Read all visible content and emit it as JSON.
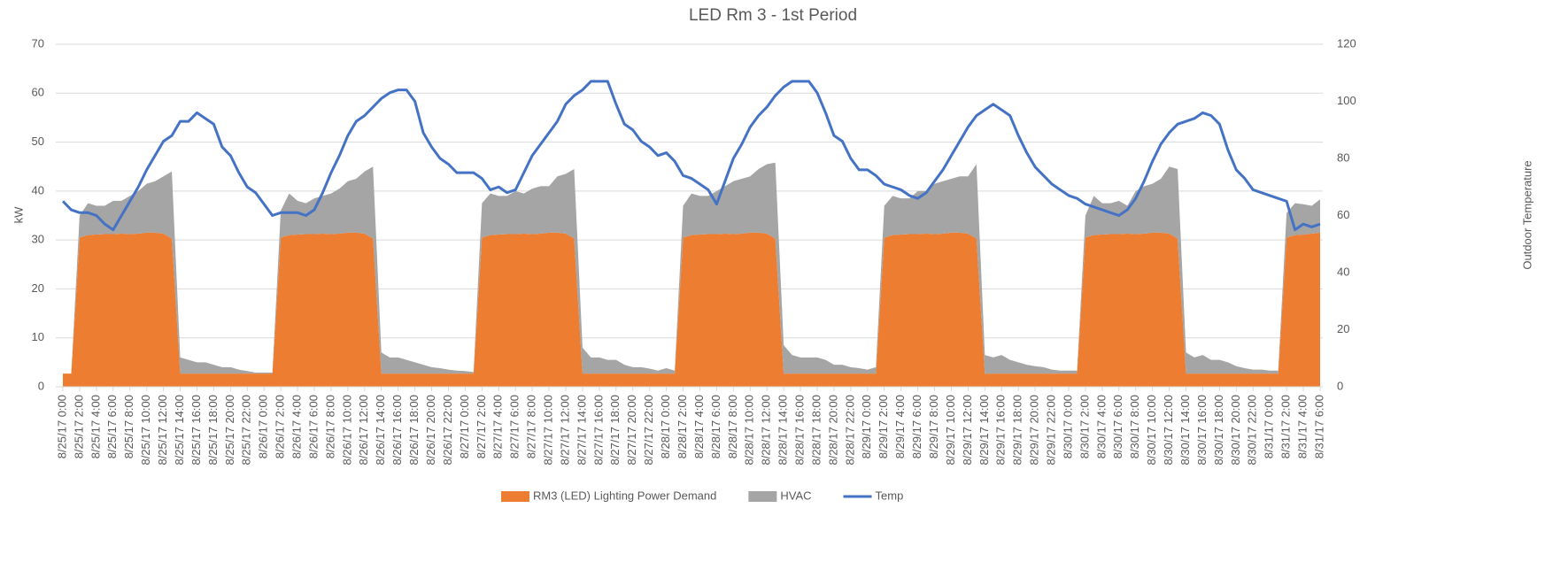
{
  "chart_data": {
    "type": "area",
    "stacked": true,
    "title": "LED Rm 3 - 1st Period",
    "y_label": "kW",
    "y2_label": "Outdoor Temperature",
    "categories": [
      "8/25/17 0:00",
      null,
      "8/25/17 2:00",
      null,
      "8/25/17 4:00",
      null,
      "8/25/17 6:00",
      null,
      "8/25/17 8:00",
      null,
      "8/25/17 10:00",
      null,
      "8/25/17 12:00",
      null,
      "8/25/17 14:00",
      null,
      "8/25/17 16:00",
      null,
      "8/25/17 18:00",
      null,
      "8/25/17 20:00",
      null,
      "8/25/17 22:00",
      null,
      "8/26/17 0:00",
      null,
      "8/26/17 2:00",
      null,
      "8/26/17 4:00",
      null,
      "8/26/17 6:00",
      null,
      "8/26/17 8:00",
      null,
      "8/26/17 10:00",
      null,
      "8/26/17 12:00",
      null,
      "8/26/17 14:00",
      null,
      "8/26/17 16:00",
      null,
      "8/26/17 18:00",
      null,
      "8/26/17 20:00",
      null,
      "8/26/17 22:00",
      null,
      "8/27/17 0:00",
      null,
      "8/27/17 2:00",
      null,
      "8/27/17 4:00",
      null,
      "8/27/17 6:00",
      null,
      "8/27/17 8:00",
      null,
      "8/27/17 10:00",
      null,
      "8/27/17 12:00",
      null,
      "8/27/17 14:00",
      null,
      "8/27/17 16:00",
      null,
      "8/27/17 18:00",
      null,
      "8/27/17 20:00",
      null,
      "8/27/17 22:00",
      null,
      "8/28/17 0:00",
      null,
      "8/28/17 2:00",
      null,
      "8/28/17 4:00",
      null,
      "8/28/17 6:00",
      null,
      "8/28/17 8:00",
      null,
      "8/28/17 10:00",
      null,
      "8/28/17 12:00",
      null,
      "8/28/17 14:00",
      null,
      "8/28/17 16:00",
      null,
      "8/28/17 18:00",
      null,
      "8/28/17 20:00",
      null,
      "8/28/17 22:00",
      null,
      "8/29/17 0:00",
      null,
      "8/29/17 2:00",
      null,
      "8/29/17 4:00",
      null,
      "8/29/17 6:00",
      null,
      "8/29/17 8:00",
      null,
      "8/29/17 10:00",
      null,
      "8/29/17 12:00",
      null,
      "8/29/17 14:00",
      null,
      "8/29/17 16:00",
      null,
      "8/29/17 18:00",
      null,
      "8/29/17 20:00",
      null,
      "8/29/17 22:00",
      null,
      "8/30/17 0:00",
      null,
      "8/30/17 2:00",
      null,
      "8/30/17 4:00",
      null,
      "8/30/17 6:00",
      null,
      "8/30/17 8:00",
      null,
      "8/30/17 10:00",
      null,
      "8/30/17 12:00",
      null,
      "8/30/17 14:00",
      null,
      "8/30/17 16:00",
      null,
      "8/30/17 18:00",
      null,
      "8/30/17 20:00",
      null,
      "8/30/17 22:00",
      null,
      "8/31/17 0:00",
      null,
      "8/31/17 2:00",
      null,
      "8/31/17 4:00",
      null,
      "8/31/17 6:00"
    ],
    "series": [
      {
        "name": "RM3 (LED) Lighting Power Demand",
        "type": "area",
        "color": "#ed7d31",
        "values": [
          2.7,
          2.7,
          30.5,
          31,
          31.1,
          31.2,
          31.2,
          31.3,
          31.2,
          31.3,
          31.5,
          31.5,
          31.3,
          30.3,
          2.7,
          2.7,
          2.7,
          2.7,
          2.7,
          2.7,
          2.7,
          2.7,
          2.7,
          2.7,
          2.7,
          2.7,
          30.5,
          31,
          31.1,
          31.2,
          31.2,
          31.3,
          31.2,
          31.3,
          31.5,
          31.5,
          31.3,
          30.3,
          2.7,
          2.7,
          2.7,
          2.7,
          2.7,
          2.7,
          2.7,
          2.7,
          2.7,
          2.7,
          2.7,
          2.7,
          30.5,
          31,
          31.1,
          31.2,
          31.2,
          31.3,
          31.2,
          31.3,
          31.5,
          31.5,
          31.3,
          30.3,
          2.7,
          2.7,
          2.7,
          2.7,
          2.7,
          2.7,
          2.7,
          2.7,
          2.7,
          2.7,
          2.7,
          2.7,
          30.5,
          31,
          31.1,
          31.2,
          31.2,
          31.3,
          31.2,
          31.3,
          31.5,
          31.5,
          31.3,
          30.3,
          2.7,
          2.7,
          2.7,
          2.7,
          2.7,
          2.7,
          2.7,
          2.7,
          2.7,
          2.7,
          2.7,
          2.7,
          30.5,
          31,
          31.1,
          31.2,
          31.2,
          31.3,
          31.2,
          31.3,
          31.5,
          31.5,
          31.3,
          30.3,
          2.7,
          2.7,
          2.7,
          2.7,
          2.7,
          2.7,
          2.7,
          2.7,
          2.7,
          2.7,
          2.7,
          2.7,
          30.5,
          31,
          31.1,
          31.2,
          31.2,
          31.3,
          31.2,
          31.3,
          31.5,
          31.5,
          31.3,
          30.3,
          2.7,
          2.7,
          2.7,
          2.7,
          2.7,
          2.7,
          2.7,
          2.7,
          2.7,
          2.7,
          2.7,
          2.7,
          30.5,
          31,
          31.1,
          31.3,
          31.5
        ]
      },
      {
        "name": "HVAC",
        "type": "area",
        "color": "#a5a5a5",
        "values": [
          0,
          0,
          4.5,
          6.5,
          5.9,
          5.8,
          6.8,
          6.7,
          7.8,
          8.7,
          10,
          10.5,
          11.7,
          13.7,
          3.3,
          2.8,
          2.3,
          2.3,
          1.8,
          1.3,
          1.3,
          0.8,
          0.5,
          0.2,
          0.2,
          0.2,
          5.5,
          8.5,
          6.9,
          6.3,
          7.3,
          7.7,
          8.3,
          9.2,
          10.5,
          11,
          12.7,
          14.7,
          4.3,
          3.3,
          3.3,
          2.8,
          2.3,
          1.8,
          1.3,
          1.1,
          0.8,
          0.6,
          0.5,
          0.3,
          7,
          8.5,
          7.9,
          7.8,
          8.8,
          8.2,
          9.3,
          9.7,
          9.5,
          11.5,
          12.2,
          14.2,
          5.3,
          3.3,
          3.3,
          2.8,
          2.8,
          1.8,
          1.3,
          1.3,
          1,
          0.6,
          1.1,
          0.6,
          6.5,
          8.5,
          7.9,
          7.8,
          8.8,
          9.7,
          10.8,
          11.2,
          11.5,
          13,
          14.2,
          15.5,
          5.8,
          3.8,
          3.3,
          3.3,
          3.3,
          2.8,
          1.8,
          1.8,
          1.3,
          1.1,
          0.8,
          1.3,
          6.5,
          8,
          7.4,
          7.3,
          8.8,
          8.7,
          10.3,
          10.7,
          11,
          11.5,
          11.7,
          15.2,
          3.8,
          3.3,
          3.8,
          2.8,
          2.3,
          1.8,
          1.5,
          1.3,
          0.8,
          0.6,
          0.6,
          0.6,
          4.5,
          8,
          6.4,
          6.3,
          6.8,
          5.7,
          8.8,
          9.7,
          10,
          11,
          13.7,
          14.2,
          4.3,
          3.3,
          3.8,
          2.8,
          2.8,
          2.3,
          1.5,
          1.1,
          0.8,
          0.8,
          0.6,
          0.6,
          5,
          6.5,
          6.2,
          5.7,
          6.8
        ]
      },
      {
        "name": "Temp",
        "type": "line",
        "axis": "y2",
        "color": "#4472c4",
        "values": [
          65,
          62,
          61,
          61,
          60,
          57,
          55,
          60,
          65,
          70,
          76,
          81,
          86,
          88,
          93,
          93,
          96,
          94,
          92,
          84,
          81,
          75,
          70,
          68,
          64,
          60,
          61,
          61,
          61,
          60,
          62,
          68,
          75,
          81,
          88,
          93,
          95,
          98,
          101,
          103,
          104,
          104,
          100,
          89,
          84,
          80,
          78,
          75,
          75,
          75,
          73,
          69,
          70,
          68,
          69,
          75,
          81,
          85,
          89,
          93,
          99,
          102,
          104,
          107,
          107,
          107,
          99,
          92,
          90,
          86,
          84,
          81,
          82,
          79,
          74,
          73,
          71,
          69,
          64,
          72,
          80,
          85,
          91,
          95,
          98,
          102,
          105,
          107,
          107,
          107,
          103,
          96,
          88,
          86,
          80,
          76,
          76,
          74,
          71,
          70,
          69,
          67,
          66,
          68,
          72,
          76,
          81,
          86,
          91,
          95,
          97,
          99,
          97,
          95,
          88,
          82,
          77,
          74,
          71,
          69,
          67,
          66,
          64,
          63,
          62,
          61,
          60,
          62,
          66,
          72,
          79,
          85,
          89,
          92,
          93,
          94,
          96,
          95,
          92,
          83,
          76,
          73,
          69,
          68,
          67,
          66,
          65,
          55,
          57,
          56,
          57
        ]
      }
    ],
    "ylim": [
      0,
      70
    ],
    "yticks": [
      0,
      10,
      20,
      30,
      40,
      50,
      60,
      70
    ],
    "y2lim": [
      0,
      120
    ],
    "y2ticks": [
      0,
      20,
      40,
      60,
      80,
      100,
      120
    ],
    "grid": true,
    "legend": "bottom"
  }
}
